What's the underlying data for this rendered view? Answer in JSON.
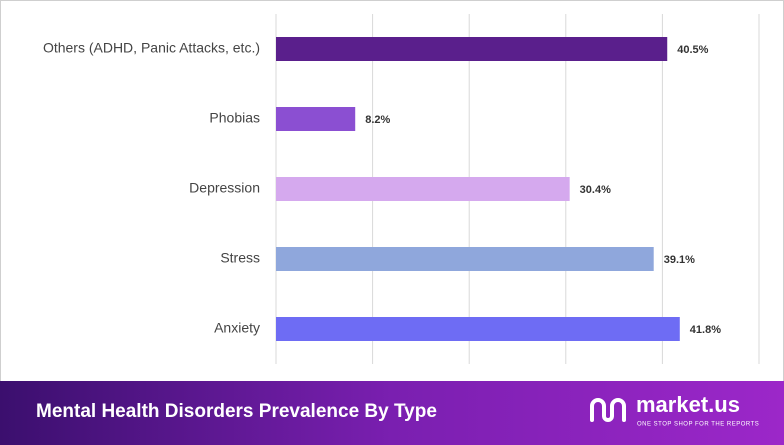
{
  "chart_data": {
    "type": "bar",
    "orientation": "horizontal",
    "title": "Mental Health Disorders Prevalence By Type",
    "categories": [
      "Others (ADHD, Panic Attacks, etc.)",
      "Phobias",
      "Depression",
      "Stress",
      "Anxiety"
    ],
    "values": [
      40.5,
      8.2,
      30.4,
      39.1,
      41.8
    ],
    "value_labels": [
      "40.5%",
      "8.2%",
      "30.4%",
      "39.1%",
      "41.8%"
    ],
    "colors": [
      "#5a1f8c",
      "#8b4fd2",
      "#d5a9ee",
      "#8fa7dc",
      "#6e6cf4"
    ],
    "xlim": [
      0,
      50
    ],
    "xticks": [
      0,
      10,
      20,
      30,
      40,
      50
    ],
    "grid": true
  },
  "branding": {
    "name": "market.us",
    "tagline": "ONE STOP SHOP FOR THE REPORTS"
  }
}
